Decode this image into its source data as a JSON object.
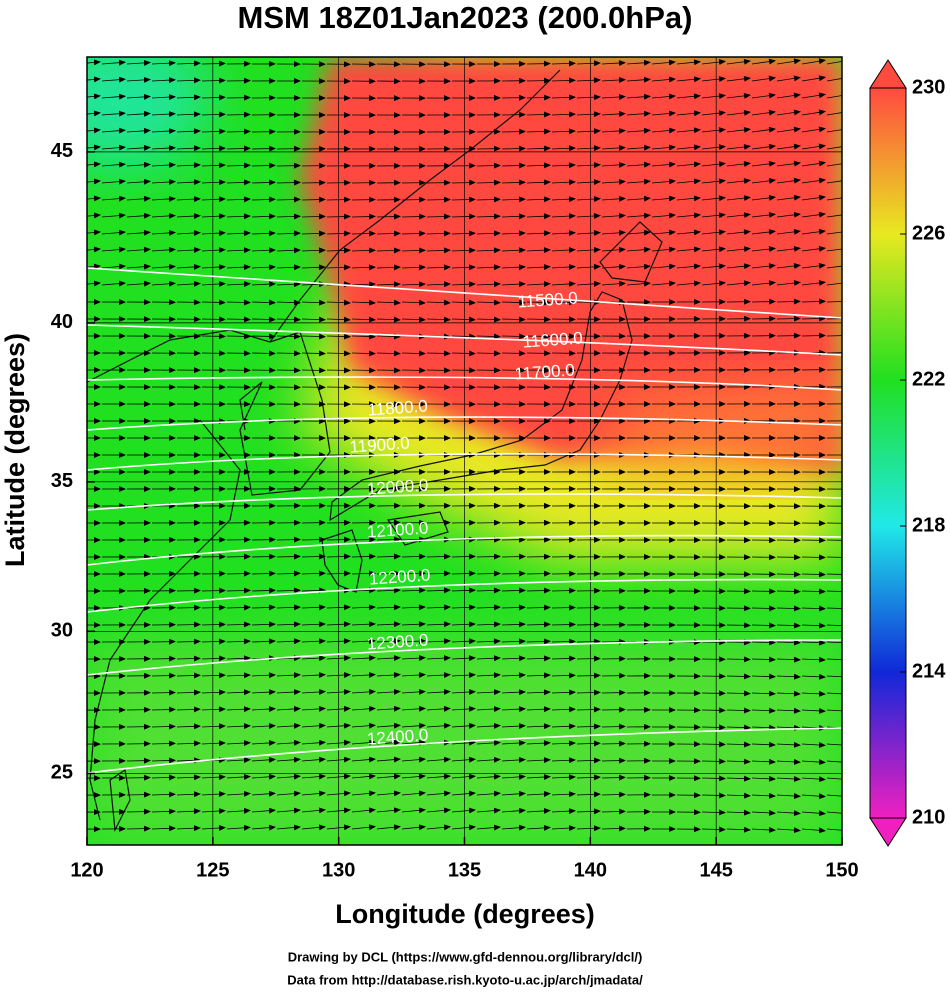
{
  "title": "MSM 18Z01Jan2023 (200.0hPa)",
  "x_axis": {
    "label": "Longitude (degrees)",
    "lim": [
      120,
      150
    ],
    "ticks": [
      120,
      125,
      130,
      135,
      140,
      145,
      150
    ]
  },
  "y_axis": {
    "label": "Latitude  (degrees)",
    "lim": [
      22.4,
      47.6
    ],
    "ticks": [
      25,
      30,
      35,
      40,
      45
    ],
    "projection": "mercator"
  },
  "grid": true,
  "colorbar": {
    "lim": [
      210,
      230
    ],
    "ticks": [
      210,
      214,
      218,
      222,
      226,
      230
    ],
    "colors": [
      "#f020c0",
      "#1028d8",
      "#20e8e8",
      "#20e020",
      "#e8e820",
      "#ff4a40"
    ]
  },
  "contours": [
    {
      "value": 11500,
      "label": "11500.0"
    },
    {
      "value": 11600,
      "label": "11600.0"
    },
    {
      "value": 11700,
      "label": "11700.0"
    },
    {
      "value": 11800,
      "label": "11800.0"
    },
    {
      "value": 11900,
      "label": "11900.0"
    },
    {
      "value": 12000,
      "label": "12000.0"
    },
    {
      "value": 12100,
      "label": "12100.0"
    },
    {
      "value": 12200,
      "label": "12200.0"
    },
    {
      "value": 12300,
      "label": "12300.0"
    },
    {
      "value": 12400,
      "label": "12400.0"
    }
  ],
  "credits": [
    "Drawing by DCL (https://www.gfd-dennou.org/library/dcl/)",
    "Data from http://database.rish.kyoto-u.ac.jp/arch/jmadata/"
  ]
}
